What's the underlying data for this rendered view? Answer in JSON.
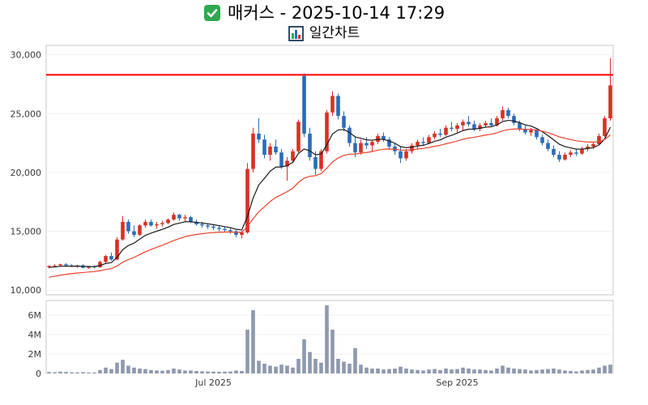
{
  "header": {
    "title": "매커스 - 2025-10-14 17:29",
    "subtitle": "일간차트",
    "check_icon": "green-checkbox",
    "subtitle_icon": "bar-chart"
  },
  "chart_data": {
    "type": "candlestick_with_volume",
    "title": "매커스 - 2025-10-14 17:29",
    "subtitle": "일간차트",
    "grid": true,
    "up_color": "#d93025",
    "down_color": "#2b6cb8",
    "volume_color": "#8e99ad",
    "panel_border_color": "#c9c9c9",
    "grid_color": "#f0f0f0",
    "price_axis": {
      "range": [
        9600,
        30800
      ],
      "ticks": [
        30000,
        25000,
        20000,
        15000,
        10000
      ],
      "labels": [
        "30,000",
        "25,000",
        "20,000",
        "15,000",
        "10,000"
      ]
    },
    "volume_axis": {
      "range": [
        0,
        7500000
      ],
      "ticks": [
        6000000,
        4000000,
        2000000,
        0
      ],
      "labels": [
        "6M",
        "4M",
        "2M",
        "0"
      ]
    },
    "x_ticks": [
      {
        "index": 29,
        "label": "Jul 2025"
      },
      {
        "index": 72,
        "label": "Sep 2025"
      }
    ],
    "resistance_line": {
      "value": 28300,
      "color": "#ff0000",
      "width": 2
    },
    "ma_lines": [
      {
        "name": "short-ma",
        "period": 8,
        "color": "#1a1a1a",
        "seed": 11900,
        "width": 1.2
      },
      {
        "name": "long-ma",
        "period": 22,
        "color": "#e8432e",
        "seed": 11000,
        "width": 1.2
      }
    ],
    "candles_format": [
      "open",
      "high",
      "low",
      "close",
      "volume"
    ],
    "candles": [
      [
        11950,
        12100,
        11850,
        12050,
        150000
      ],
      [
        12050,
        12200,
        11950,
        12100,
        120000
      ],
      [
        12100,
        12250,
        12000,
        12200,
        180000
      ],
      [
        12200,
        12300,
        12050,
        12100,
        150000
      ],
      [
        12100,
        12200,
        11950,
        12000,
        110000
      ],
      [
        12000,
        12150,
        11900,
        12100,
        100000
      ],
      [
        12100,
        12200,
        11850,
        11900,
        130000
      ],
      [
        11900,
        12050,
        11800,
        12000,
        90000
      ],
      [
        12000,
        12100,
        11850,
        11950,
        100000
      ],
      [
        11950,
        12500,
        11900,
        12400,
        350000
      ],
      [
        12400,
        13000,
        12300,
        12900,
        600000
      ],
      [
        12900,
        13200,
        12500,
        12600,
        450000
      ],
      [
        12600,
        14500,
        12550,
        14300,
        1100000
      ],
      [
        14300,
        16300,
        14200,
        15800,
        1400000
      ],
      [
        15800,
        16000,
        14800,
        15000,
        800000
      ],
      [
        15000,
        15500,
        14500,
        14700,
        600000
      ],
      [
        14700,
        15600,
        14600,
        15500,
        500000
      ],
      [
        15500,
        16000,
        15300,
        15800,
        450000
      ],
      [
        15800,
        16000,
        15400,
        15500,
        350000
      ],
      [
        15500,
        15800,
        15200,
        15600,
        300000
      ],
      [
        15600,
        15900,
        15400,
        15700,
        280000
      ],
      [
        15700,
        16100,
        15600,
        16000,
        350000
      ],
      [
        16000,
        16600,
        15900,
        16400,
        500000
      ],
      [
        16400,
        16500,
        15900,
        16100,
        400000
      ],
      [
        16100,
        16400,
        15800,
        16200,
        300000
      ],
      [
        16200,
        16300,
        15700,
        15800,
        300000
      ],
      [
        15800,
        16000,
        15500,
        15600,
        250000
      ],
      [
        15600,
        15800,
        15300,
        15500,
        220000
      ],
      [
        15500,
        15700,
        15200,
        15400,
        200000
      ],
      [
        15400,
        15600,
        15100,
        15300,
        180000
      ],
      [
        15300,
        15500,
        15000,
        15200,
        160000
      ],
      [
        15200,
        15400,
        14900,
        15100,
        180000
      ],
      [
        15100,
        15300,
        14800,
        15000,
        200000
      ],
      [
        15000,
        15100,
        14500,
        14700,
        300000
      ],
      [
        14700,
        15000,
        14400,
        14900,
        250000
      ],
      [
        14900,
        20800,
        14800,
        20300,
        4500000
      ],
      [
        20300,
        23800,
        20000,
        23300,
        6500000
      ],
      [
        23300,
        24600,
        22500,
        22800,
        1300000
      ],
      [
        22800,
        23200,
        21200,
        21500,
        1000000
      ],
      [
        21500,
        22500,
        21000,
        22200,
        800000
      ],
      [
        22200,
        22800,
        21500,
        21700,
        700000
      ],
      [
        21700,
        22000,
        20300,
        20500,
        900000
      ],
      [
        20500,
        21300,
        19300,
        21000,
        800000
      ],
      [
        21000,
        22000,
        20800,
        21800,
        600000
      ],
      [
        21800,
        24500,
        21700,
        24300,
        1500000
      ],
      [
        28200,
        28400,
        23000,
        23300,
        3500000
      ],
      [
        23300,
        23800,
        21000,
        21300,
        2200000
      ],
      [
        21300,
        21800,
        19800,
        20300,
        1500000
      ],
      [
        20300,
        22000,
        20100,
        21800,
        1100000
      ],
      [
        21800,
        25300,
        21600,
        25100,
        7000000
      ],
      [
        25100,
        26900,
        24800,
        26500,
        4500000
      ],
      [
        26500,
        26700,
        24500,
        24800,
        1500000
      ],
      [
        24800,
        25200,
        23500,
        23800,
        1200000
      ],
      [
        23800,
        24000,
        22200,
        22500,
        1000000
      ],
      [
        22500,
        23000,
        21300,
        21700,
        2600000
      ],
      [
        21700,
        22800,
        21500,
        22500,
        900000
      ],
      [
        22500,
        23000,
        22000,
        22300,
        600000
      ],
      [
        22300,
        22800,
        21800,
        22600,
        500000
      ],
      [
        22600,
        23300,
        22400,
        23100,
        500000
      ],
      [
        23100,
        23400,
        22600,
        22800,
        400000
      ],
      [
        22800,
        23000,
        22000,
        22200,
        450000
      ],
      [
        22200,
        22500,
        21500,
        21800,
        500000
      ],
      [
        21800,
        22200,
        20800,
        21200,
        700000
      ],
      [
        21200,
        22000,
        21000,
        21800,
        500000
      ],
      [
        21800,
        22500,
        21600,
        22300,
        400000
      ],
      [
        22300,
        22800,
        22000,
        22600,
        350000
      ],
      [
        22600,
        23000,
        22300,
        22500,
        300000
      ],
      [
        22500,
        23200,
        22400,
        23000,
        400000
      ],
      [
        23000,
        23500,
        22800,
        23300,
        450000
      ],
      [
        23300,
        23700,
        23000,
        23200,
        350000
      ],
      [
        23200,
        24000,
        23100,
        23800,
        500000
      ],
      [
        23800,
        24300,
        23500,
        23700,
        400000
      ],
      [
        23700,
        24200,
        23400,
        24000,
        450000
      ],
      [
        24000,
        24500,
        23600,
        24300,
        600000
      ],
      [
        24300,
        24800,
        23900,
        24100,
        500000
      ],
      [
        24100,
        24400,
        23500,
        23700,
        400000
      ],
      [
        23700,
        24200,
        23500,
        24000,
        400000
      ],
      [
        24000,
        24400,
        23800,
        24200,
        350000
      ],
      [
        24200,
        24600,
        23900,
        24000,
        300000
      ],
      [
        24000,
        24800,
        23900,
        24600,
        500000
      ],
      [
        24600,
        25600,
        24400,
        25300,
        800000
      ],
      [
        25300,
        25500,
        24600,
        24800,
        600000
      ],
      [
        24800,
        25000,
        24000,
        24200,
        500000
      ],
      [
        24200,
        24400,
        23500,
        23700,
        450000
      ],
      [
        23700,
        24000,
        23200,
        23400,
        400000
      ],
      [
        23400,
        23800,
        23100,
        23600,
        300000
      ],
      [
        23600,
        23700,
        22800,
        23000,
        350000
      ],
      [
        23000,
        23200,
        22300,
        22500,
        400000
      ],
      [
        22500,
        22800,
        21800,
        22000,
        450000
      ],
      [
        22000,
        22300,
        21300,
        21500,
        500000
      ],
      [
        21500,
        21800,
        20900,
        21100,
        400000
      ],
      [
        21100,
        21700,
        21000,
        21500,
        300000
      ],
      [
        21500,
        21900,
        21300,
        21700,
        250000
      ],
      [
        21700,
        22000,
        21400,
        21600,
        200000
      ],
      [
        21600,
        22200,
        21500,
        22000,
        300000
      ],
      [
        22000,
        22400,
        21800,
        22200,
        350000
      ],
      [
        22200,
        22600,
        22000,
        22400,
        400000
      ],
      [
        22400,
        23300,
        22300,
        23100,
        600000
      ],
      [
        23100,
        24800,
        23000,
        24600,
        800000
      ],
      [
        24600,
        29700,
        24400,
        27400,
        900000
      ]
    ]
  }
}
